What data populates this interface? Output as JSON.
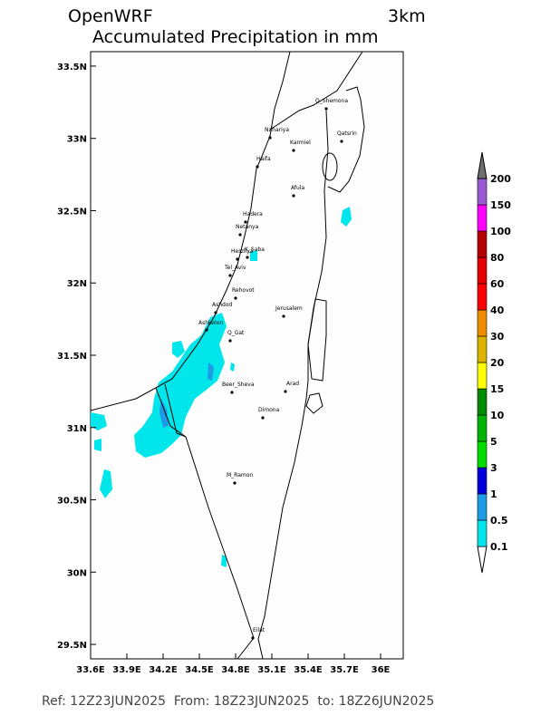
{
  "header": {
    "title": "OpenWRF",
    "resolution": "3km",
    "subtitle": "Accumulated Precipitation in mm"
  },
  "map": {
    "xlim": [
      33.6,
      36.2
    ],
    "ylim": [
      29.4,
      33.6
    ],
    "xticks": [
      {
        "value": 33.6,
        "label": "33.6E"
      },
      {
        "value": 33.9,
        "label": "33.9E"
      },
      {
        "value": 34.2,
        "label": "34.2E"
      },
      {
        "value": 34.5,
        "label": "34.5E"
      },
      {
        "value": 34.8,
        "label": "34.8E"
      },
      {
        "value": 35.1,
        "label": "35.1E"
      },
      {
        "value": 35.4,
        "label": "35.4E"
      },
      {
        "value": 35.7,
        "label": "35.7E"
      },
      {
        "value": 36,
        "label": "36E"
      }
    ],
    "yticks": [
      {
        "value": 33.5,
        "label": "33.5N"
      },
      {
        "value": 33,
        "label": "33N"
      },
      {
        "value": 32.5,
        "label": "32.5N"
      },
      {
        "value": 32,
        "label": "32N"
      },
      {
        "value": 31.5,
        "label": "31.5N"
      },
      {
        "value": 31,
        "label": "31N"
      },
      {
        "value": 30.5,
        "label": "30.5N"
      },
      {
        "value": 30,
        "label": "30N"
      },
      {
        "value": 29.5,
        "label": "29.5N"
      }
    ],
    "cities": [
      "Q_Shemona",
      "Nahariya",
      "Karmiel",
      "Qatsrin",
      "Haifa",
      "Afula",
      "Hadera",
      "Netanya",
      "Herzliya",
      "K_Saba",
      "Tel_Aviv",
      "Rehovot",
      "Ashdod",
      "Jerusalem",
      "Ashkelon",
      "Q_Gat",
      "Beer_Sheva",
      "Arad",
      "Dimona",
      "M_Ramon",
      "Eilat"
    ]
  },
  "colorbar": {
    "levels": [
      0.1,
      0.5,
      1,
      3,
      5,
      10,
      15,
      20,
      30,
      40,
      60,
      80,
      100,
      150,
      200
    ],
    "colors": [
      "#ffffff",
      "#00e6ea",
      "#1e9be6",
      "#0000dc",
      "#00dc00",
      "#00b400",
      "#008c00",
      "#ffff00",
      "#dcb400",
      "#f08c00",
      "#ff0000",
      "#e60000",
      "#b40000",
      "#ff00ff",
      "#9a5ad2",
      "#707070"
    ]
  },
  "footer": "Ref: 12Z23JUN2025  From: 18Z23JUN2025  to: 18Z26JUN2025"
}
